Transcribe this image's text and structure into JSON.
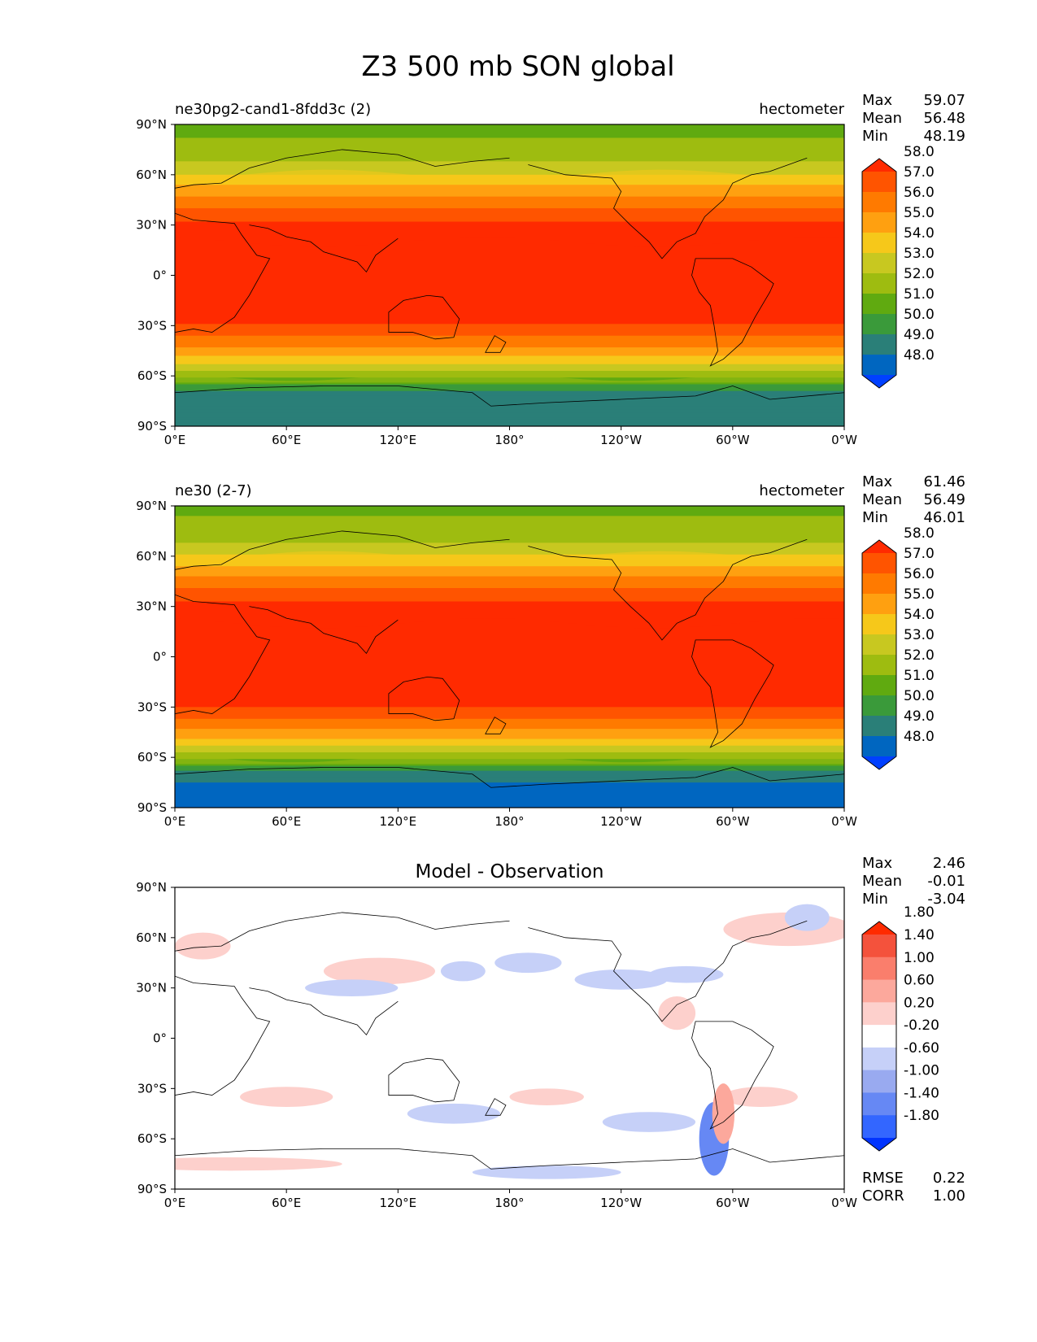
{
  "chart_data": {
    "title": "Z3 500 mb SON global",
    "x_ticks": [
      "0°E",
      "60°E",
      "120°E",
      "180°",
      "120°W",
      "60°W",
      "0°W"
    ],
    "y_ticks": [
      "90°N",
      "60°N",
      "30°N",
      "0°",
      "30°S",
      "60°S",
      "90°S"
    ],
    "panels": [
      {
        "type": "heatmap",
        "name": "test",
        "left_title": "ne30pg2-cand1-8fdd3c (2)",
        "right_title": "hectometer",
        "center_title": "",
        "stats": [
          [
            "Max",
            "59.07"
          ],
          [
            "Mean",
            "56.48"
          ],
          [
            "Min",
            "48.19"
          ]
        ],
        "colorbar": {
          "levels": [
            48.0,
            49.0,
            50.0,
            51.0,
            52.0,
            53.0,
            54.0,
            55.0,
            56.0,
            57.0,
            58.0
          ],
          "labels": [
            "48.0",
            "49.0",
            "50.0",
            "51.0",
            "52.0",
            "53.0",
            "54.0",
            "55.0",
            "56.0",
            "57.0",
            "58.0"
          ],
          "colors": [
            "#0040ff",
            "#0066c0",
            "#2a7f78",
            "#3a9a3a",
            "#60aa10",
            "#9ebc10",
            "#c8c820",
            "#f6c81a",
            "#ffa010",
            "#ff7a00",
            "#ff5400",
            "#ff2a00"
          ]
        },
        "zonal_profile": {
          "lat": [
            90,
            80,
            70,
            65,
            60,
            55,
            50,
            45,
            40,
            35,
            30,
            20,
            0,
            -20,
            -25,
            -30,
            -35,
            -40,
            -45,
            -50,
            -55,
            -60,
            -65,
            -70,
            -75,
            -90
          ],
          "value": [
            51.6,
            52.1,
            52.7,
            53.3,
            54.0,
            54.8,
            55.6,
            56.3,
            57.0,
            57.6,
            58.2,
            58.6,
            58.8,
            58.6,
            58.3,
            57.9,
            57.2,
            56.4,
            55.6,
            54.6,
            53.4,
            52.2,
            51.0,
            49.6,
            49.2,
            49.1
          ]
        },
        "bottom_stats": []
      },
      {
        "type": "heatmap",
        "name": "reference",
        "left_title": "ne30 (2-7)",
        "right_title": "hectometer",
        "center_title": "",
        "stats": [
          [
            "Max",
            "61.46"
          ],
          [
            "Mean",
            "56.49"
          ],
          [
            "Min",
            "46.01"
          ]
        ],
        "colorbar": {
          "levels": [
            48.0,
            49.0,
            50.0,
            51.0,
            52.0,
            53.0,
            54.0,
            55.0,
            56.0,
            57.0,
            58.0
          ],
          "labels": [
            "48.0",
            "49.0",
            "50.0",
            "51.0",
            "52.0",
            "53.0",
            "54.0",
            "55.0",
            "56.0",
            "57.0",
            "58.0"
          ],
          "colors": [
            "#0040ff",
            "#0066c0",
            "#2a7f78",
            "#3a9a3a",
            "#60aa10",
            "#9ebc10",
            "#c8c820",
            "#f6c81a",
            "#ffa010",
            "#ff7a00",
            "#ff5400",
            "#ff2a00"
          ]
        },
        "zonal_profile": {
          "lat": [
            90,
            80,
            70,
            65,
            60,
            55,
            50,
            45,
            40,
            35,
            30,
            20,
            0,
            -20,
            -25,
            -30,
            -35,
            -40,
            -45,
            -50,
            -55,
            -60,
            -65,
            -70,
            -75,
            -90
          ],
          "value": [
            51.7,
            52.2,
            52.8,
            53.4,
            54.1,
            54.9,
            55.7,
            56.4,
            57.1,
            57.7,
            58.3,
            58.7,
            58.9,
            58.7,
            58.4,
            58.0,
            57.3,
            56.5,
            55.7,
            54.7,
            53.5,
            52.3,
            51.1,
            49.5,
            49.0,
            48.9
          ]
        },
        "bottom_stats": []
      },
      {
        "type": "heatmap",
        "name": "difference",
        "left_title": "",
        "right_title": "",
        "center_title": "Model - Observation",
        "stats": [
          [
            "Max",
            "2.46"
          ],
          [
            "Mean",
            "-0.01"
          ],
          [
            "Min",
            "-3.04"
          ]
        ],
        "colorbar": {
          "levels": [
            -1.8,
            -1.4,
            -1.0,
            -0.6,
            -0.2,
            0.2,
            0.6,
            1.0,
            1.4,
            1.8
          ],
          "labels": [
            "-1.80",
            "-1.40",
            "-1.00",
            "-0.60",
            "-0.20",
            "0.20",
            "0.60",
            "1.00",
            "1.40",
            "1.80"
          ],
          "colors": [
            "#0033ff",
            "#3366ff",
            "#6688f4",
            "#99aaf0",
            "#c6d0f8",
            "#ffffff",
            "#fdd0cc",
            "#fca89c",
            "#fa7e6c",
            "#f4523c",
            "#ff2a00"
          ]
        },
        "zonal_profile": {
          "lat": [],
          "value": []
        },
        "bottom_stats": [
          [
            "RMSE",
            "0.22"
          ],
          [
            "CORR",
            "1.00"
          ]
        ]
      }
    ]
  }
}
